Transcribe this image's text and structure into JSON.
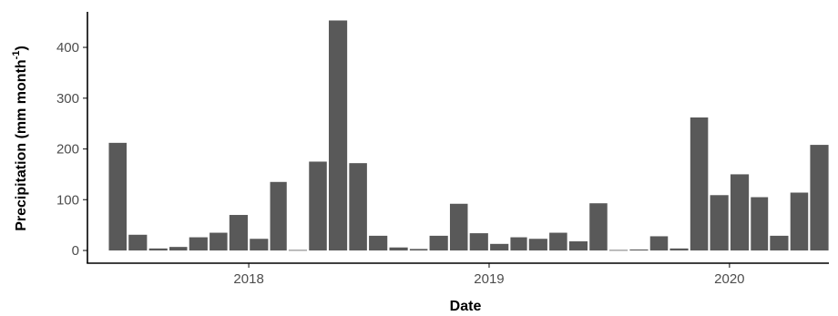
{
  "chart_data": {
    "type": "bar",
    "xlabel": "Date",
    "ylabel": "Precipitation (mm month",
    "ylabel_superscript": "-1",
    "ylabel_suffix": ")",
    "ylim": [
      -25,
      470
    ],
    "yticks": [
      0,
      100,
      200,
      300,
      400
    ],
    "x_range": [
      "2017-05-01",
      "2020-05-31"
    ],
    "xticks": [
      {
        "date": "2018-01-01",
        "label": "2018"
      },
      {
        "date": "2019-01-01",
        "label": "2019"
      },
      {
        "date": "2020-01-01",
        "label": "2020"
      }
    ],
    "bar_color": "#595959",
    "grid": false,
    "legend": "none",
    "series": [
      {
        "x": [
          "2017-06",
          "2017-07",
          "2017-08",
          "2017-09",
          "2017-10",
          "2017-11",
          "2017-12",
          "2018-01",
          "2018-02",
          "2018-03",
          "2018-04",
          "2018-05",
          "2018-06",
          "2018-07",
          "2018-08",
          "2018-09",
          "2018-10",
          "2018-11",
          "2018-12",
          "2019-01",
          "2019-02",
          "2019-03",
          "2019-04",
          "2019-05",
          "2019-06",
          "2019-07",
          "2019-08",
          "2019-09",
          "2019-10",
          "2019-11",
          "2019-12",
          "2020-01",
          "2020-02",
          "2020-03",
          "2020-04",
          "2020-05"
        ],
        "values": [
          212,
          31,
          4,
          7,
          26,
          35,
          70,
          23,
          135,
          1,
          175,
          453,
          172,
          29,
          6,
          3,
          29,
          92,
          34,
          13,
          26,
          23,
          35,
          18,
          93,
          1,
          2,
          28,
          4,
          262,
          109,
          150,
          105,
          29,
          114,
          208
        ]
      }
    ]
  }
}
